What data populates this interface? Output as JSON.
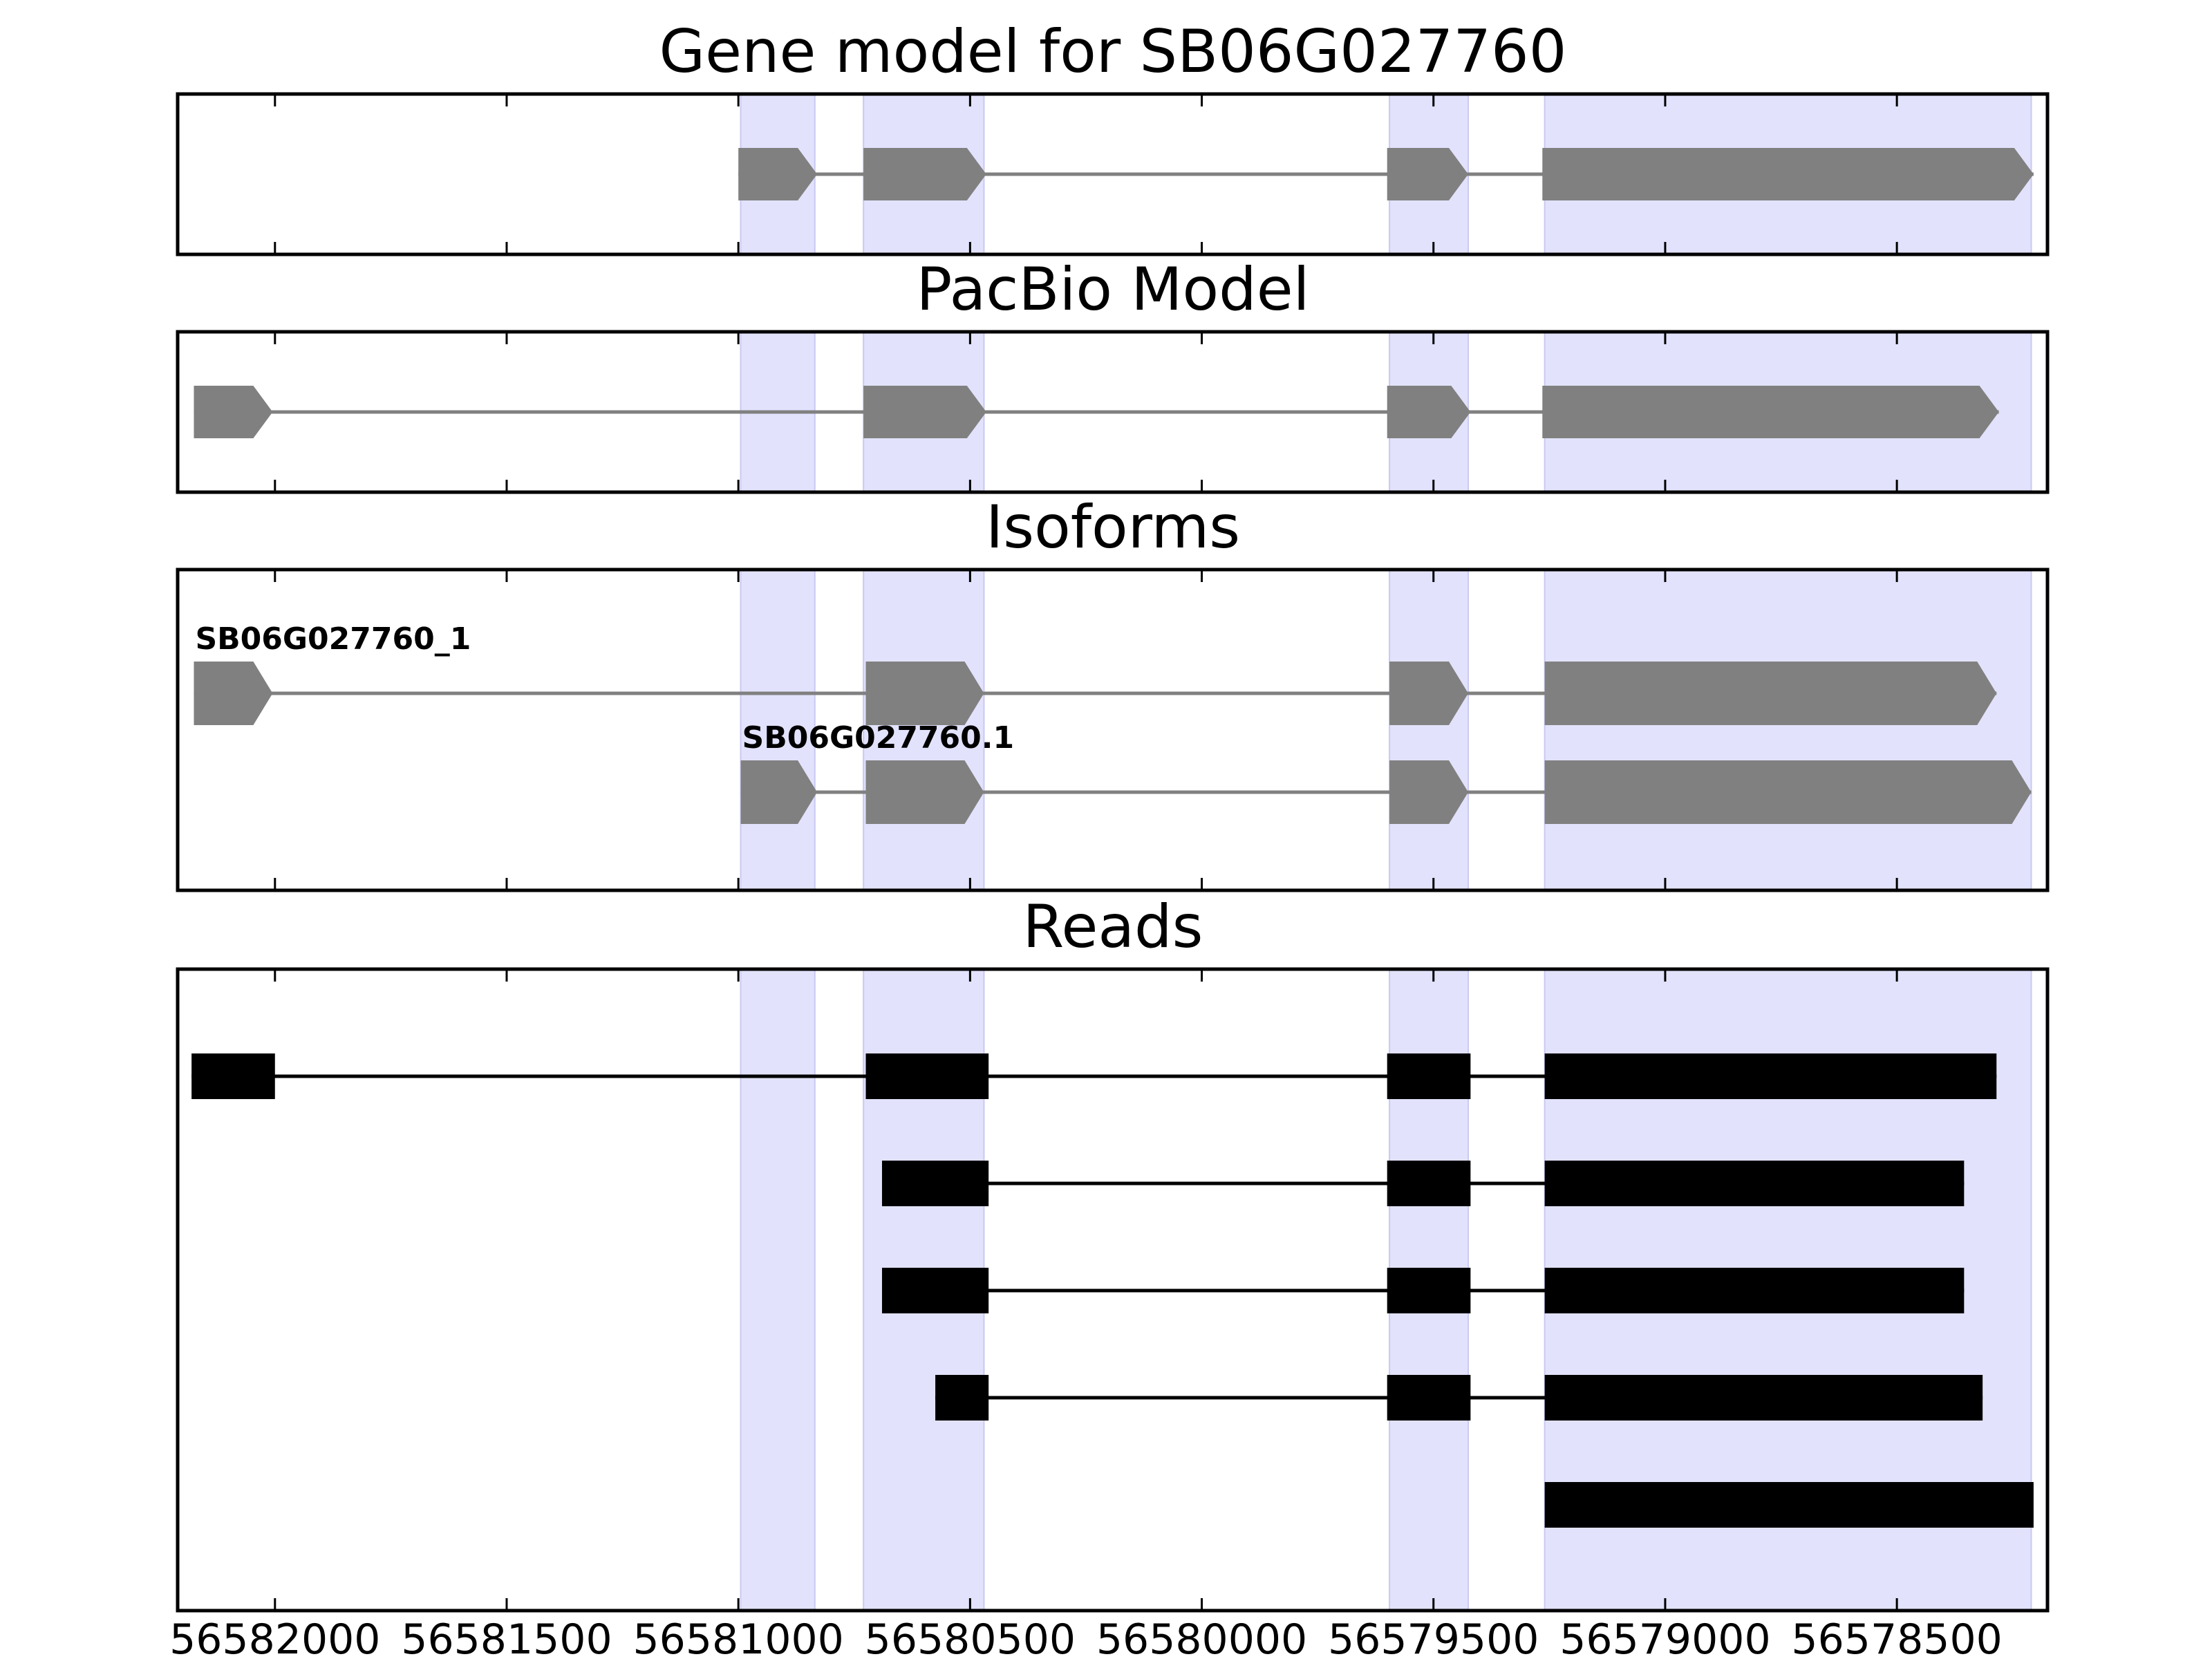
{
  "chart_data": {
    "type": "gene-model",
    "xlim": [
      56582210,
      56578175
    ],
    "x_inverted": true,
    "tick_values": [
      56582000,
      56581500,
      56581000,
      56580500,
      56580000,
      56579500,
      56579000,
      56578500
    ],
    "tick_labels": [
      "56582000",
      "56581500",
      "56581000",
      "56580500",
      "56580000",
      "56579500",
      "56579000",
      "56578500"
    ],
    "colors": {
      "highlight": "#e2e2fc",
      "feature": "#808080",
      "read": "#000000"
    },
    "highlights": [
      [
        56580995,
        56580835
      ],
      [
        56580730,
        56580470
      ],
      [
        56579595,
        56579425
      ],
      [
        56579260,
        56578210
      ]
    ],
    "panels": [
      {
        "title": "Gene model for SB06G027760",
        "lanes": [
          {
            "label": "",
            "exons": [
              [
                56581000,
                56580830
              ],
              [
                56580730,
                56580465
              ],
              [
                56579600,
                56579425
              ],
              [
                56579265,
                56578205
              ]
            ]
          }
        ]
      },
      {
        "title": "PacBio Model",
        "lanes": [
          {
            "label": "",
            "exons": [
              [
                56582175,
                56582005
              ],
              [
                56580730,
                56580465
              ],
              [
                56579600,
                56579420
              ],
              [
                56579265,
                56578280
              ]
            ]
          }
        ]
      },
      {
        "title": "Isoforms",
        "lanes": [
          {
            "label": "SB06G027760_1",
            "exons": [
              [
                56582175,
                56582005
              ],
              [
                56580725,
                56580470
              ],
              [
                56579595,
                56579425
              ],
              [
                56579260,
                56578285
              ]
            ]
          },
          {
            "label": "SB06G027760.1",
            "exons": [
              [
                56580995,
                56580830
              ],
              [
                56580725,
                56580470
              ],
              [
                56579595,
                56579425
              ],
              [
                56579260,
                56578210
              ]
            ]
          }
        ]
      },
      {
        "title": "Reads",
        "lanes": [
          {
            "label": "",
            "exons": [
              [
                56582180,
                56582000
              ],
              [
                56580725,
                56580460
              ],
              [
                56579600,
                56579420
              ],
              [
                56579260,
                56578285
              ]
            ]
          },
          {
            "label": "",
            "exons": [
              [
                56580690,
                56580460
              ],
              [
                56579600,
                56579420
              ],
              [
                56579260,
                56578355
              ]
            ]
          },
          {
            "label": "",
            "exons": [
              [
                56580690,
                56580460
              ],
              [
                56579600,
                56579420
              ],
              [
                56579260,
                56578355
              ]
            ]
          },
          {
            "label": "",
            "exons": [
              [
                56580575,
                56580460
              ],
              [
                56579600,
                56579420
              ],
              [
                56579260,
                56578315
              ]
            ]
          },
          {
            "label": "",
            "exons": [
              [
                56579260,
                56578205
              ]
            ]
          }
        ]
      }
    ]
  }
}
